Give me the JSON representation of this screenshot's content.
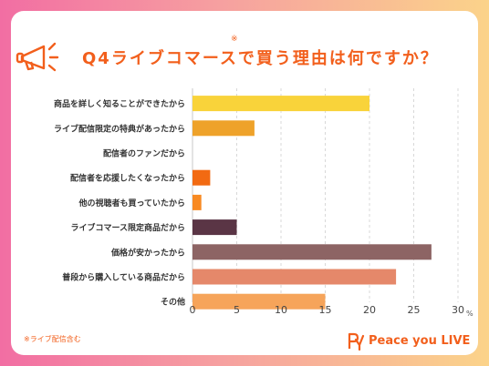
{
  "title": {
    "text": "Q4ライブコマースで買う理由は何ですか？",
    "note_mark": "※"
  },
  "footnote": "※ライブ配信含む",
  "brand": {
    "name": "Peace you LIVE",
    "logo_icon": "py-logo-icon"
  },
  "colors": {
    "title": "#f25f1c",
    "background_left": "#f26ea3",
    "background_right": "#fbd38a"
  },
  "chart_data": {
    "type": "bar",
    "orientation": "horizontal",
    "categories": [
      "商品を詳しく知ることができたから",
      "ライブ配信限定の特典があったから",
      "配信者のファンだから",
      "配信者を応援したくなったから",
      "他の視聴者も買っていたから",
      "ライブコマース限定商品だから",
      "価格が安かったから",
      "普段から購入している商品だから",
      "その他"
    ],
    "values": [
      20,
      7,
      0,
      2,
      1,
      5,
      27,
      23,
      15
    ],
    "colors": [
      "#f9d33a",
      "#eea22a",
      "#f0a033",
      "#f26a12",
      "#f88a22",
      "#5a3545",
      "#8d6464",
      "#e5886a",
      "#f6a45a"
    ],
    "xlim": [
      0,
      30
    ],
    "xticks": [
      0,
      5,
      10,
      15,
      20,
      25,
      30
    ],
    "unit": "%",
    "grid": "vertical dashed"
  }
}
